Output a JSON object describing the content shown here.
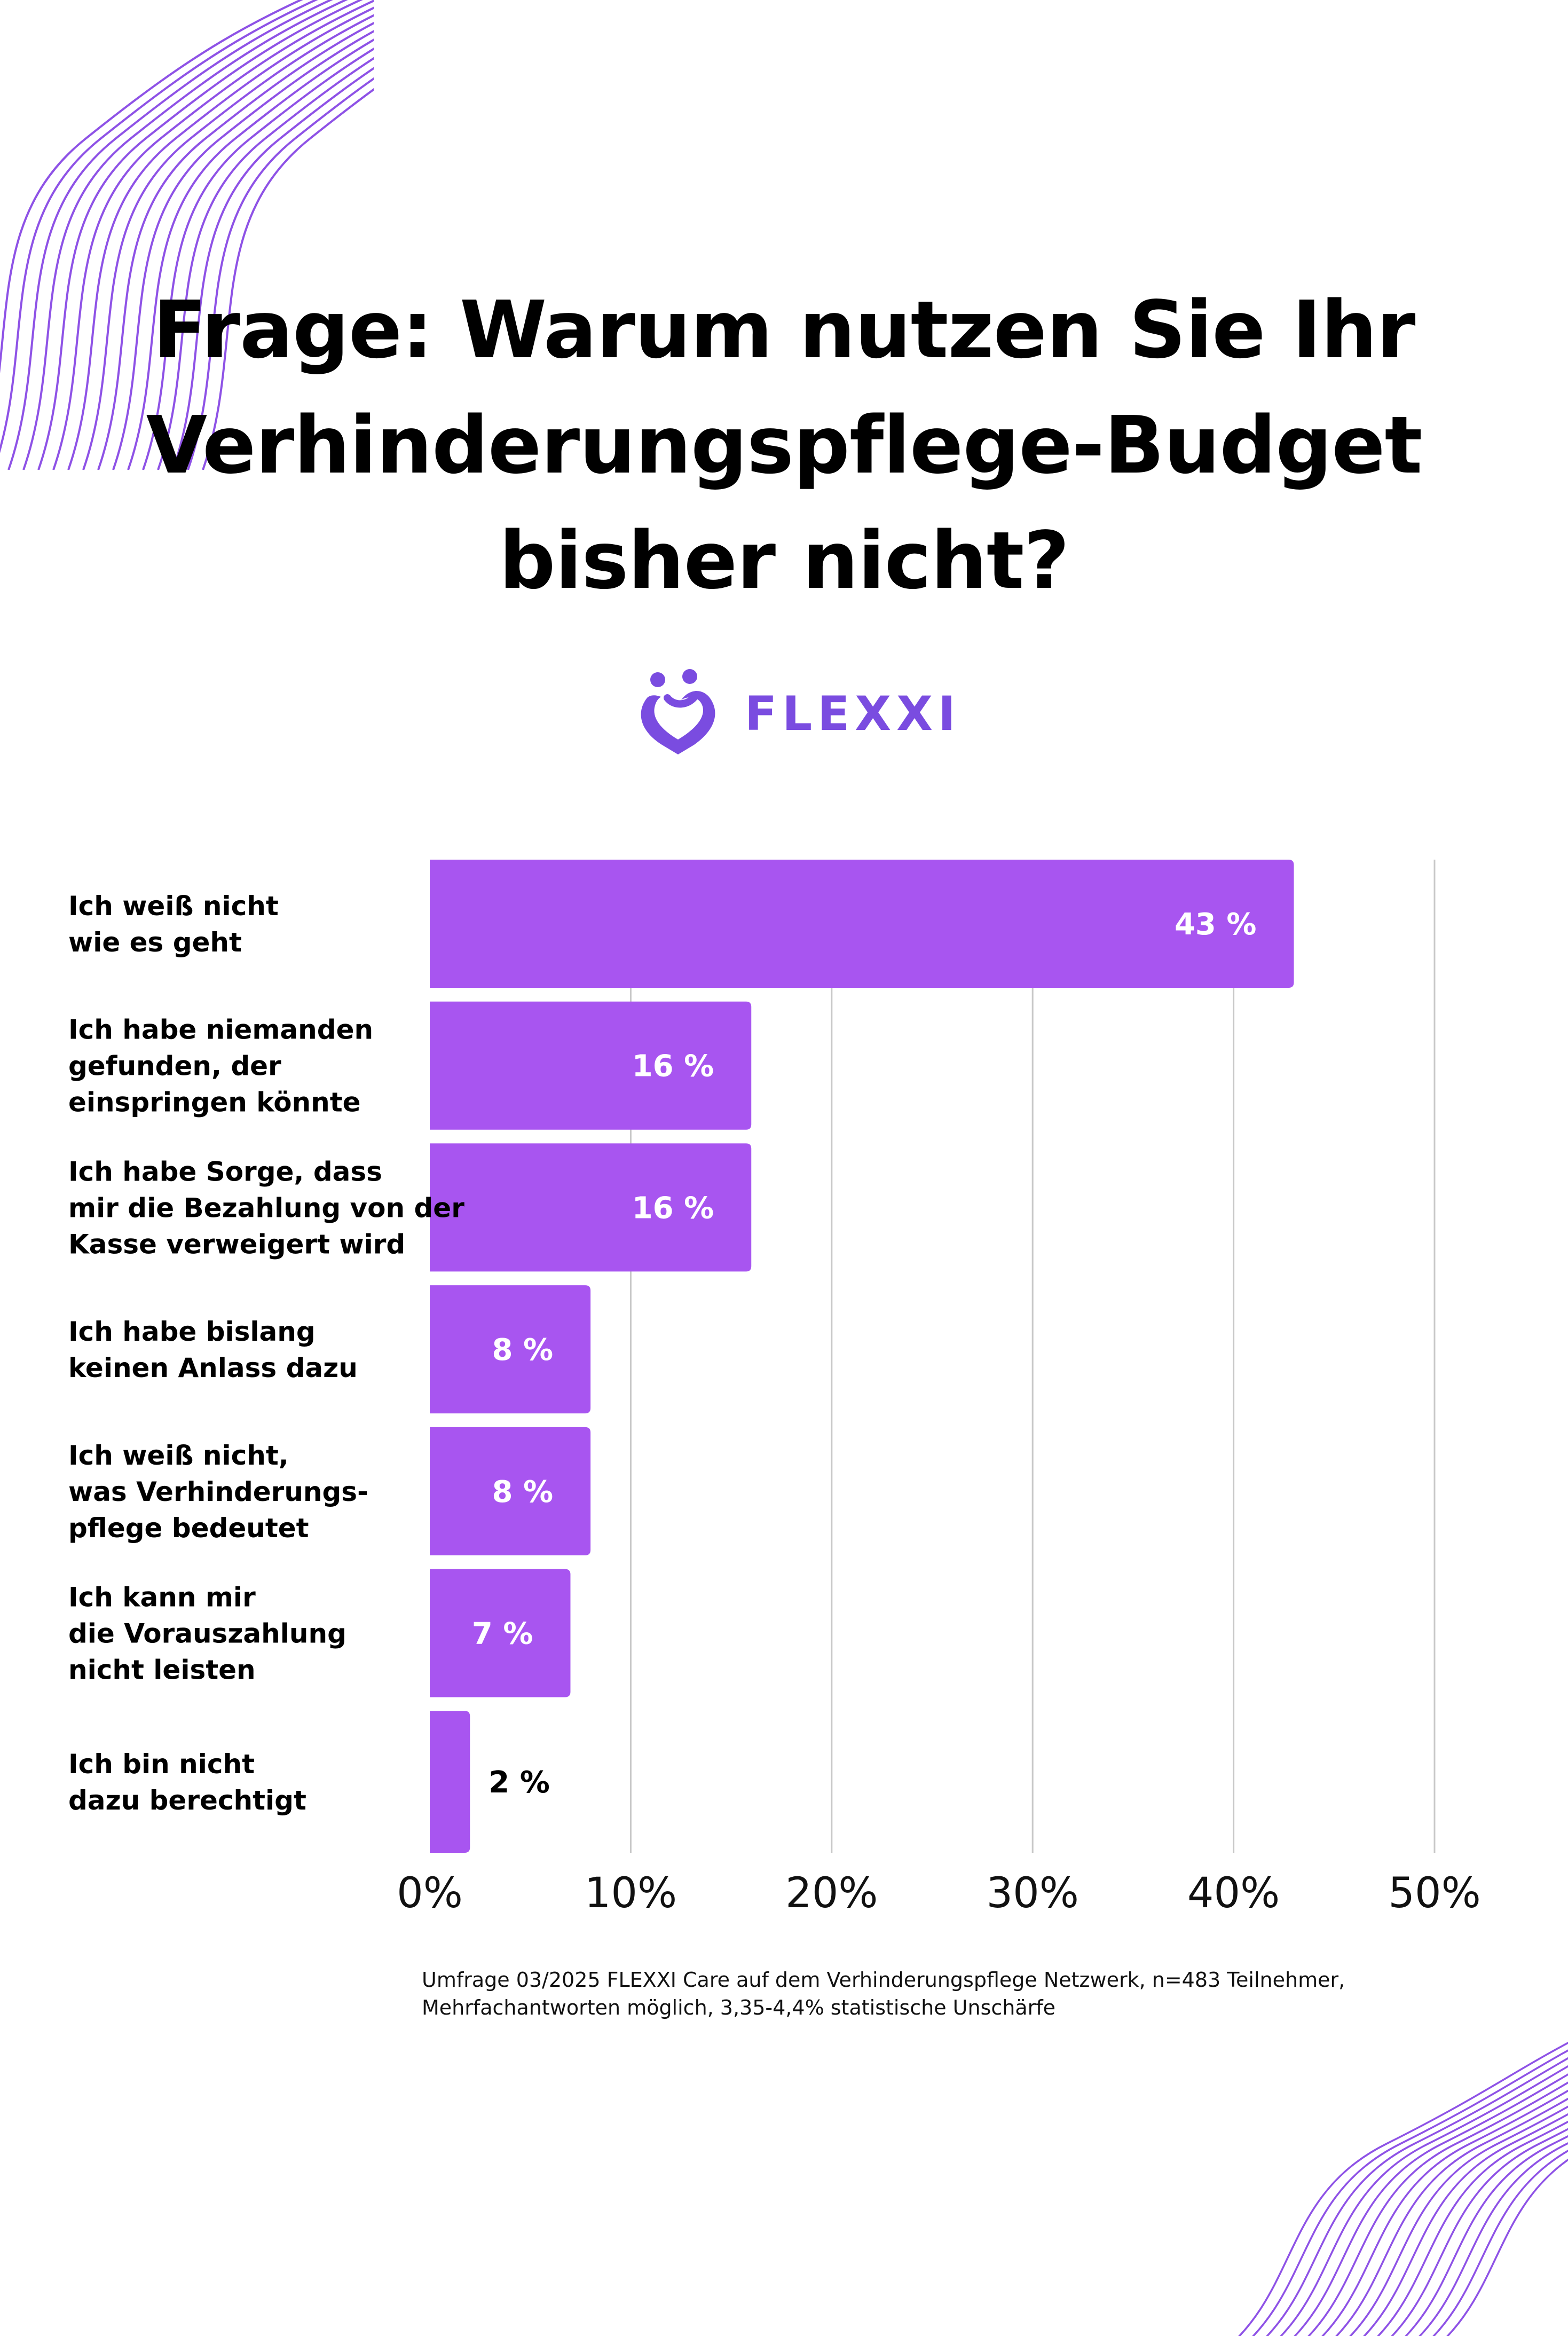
{
  "title_lines": [
    "Frage: Warum nutzen Sie Ihr",
    "Verhinderungspflege-Budget",
    "bisher nicht?"
  ],
  "brand": {
    "name": "FLEXXI",
    "color": "#7a4ce0"
  },
  "footnote": "Umfrage 03/2025 FLEXXI Care auf dem Verhinderungspflege Netzwerk, n=483 Teilnehmer, Mehrfachantworten möglich, 3,35-4,4% statistische Unschärfe",
  "colors": {
    "bar": "#a855f0",
    "grid": "#c8c8c8",
    "deco": "#8e52e6"
  },
  "chart_data": {
    "type": "bar",
    "orientation": "horizontal",
    "categories": [
      [
        "Ich weiß nicht",
        "wie es geht"
      ],
      [
        "Ich habe niemanden",
        "gefunden, der",
        "einspringen könnte"
      ],
      [
        "Ich habe Sorge, dass",
        "mir die Bezahlung von der",
        "Kasse verweigert wird"
      ],
      [
        "Ich habe bislang",
        "keinen Anlass dazu"
      ],
      [
        "Ich weiß nicht,",
        "was Verhinderungs-",
        "pflege bedeutet"
      ],
      [
        "Ich kann mir",
        "die Vorauszahlung",
        "nicht leisten"
      ],
      [
        "Ich bin nicht",
        "dazu berechtigt"
      ]
    ],
    "values": [
      43,
      16,
      16,
      8,
      8,
      7,
      2
    ],
    "value_labels": [
      "43 %",
      "16 %",
      "16 %",
      "8 %",
      "8 %",
      "7 %",
      "2 %"
    ],
    "xlim": [
      0,
      50
    ],
    "xticks": [
      0,
      10,
      20,
      30,
      40,
      50
    ],
    "xtick_labels": [
      "0%",
      "10%",
      "20%",
      "30%",
      "40%",
      "50%"
    ],
    "grid": true
  }
}
